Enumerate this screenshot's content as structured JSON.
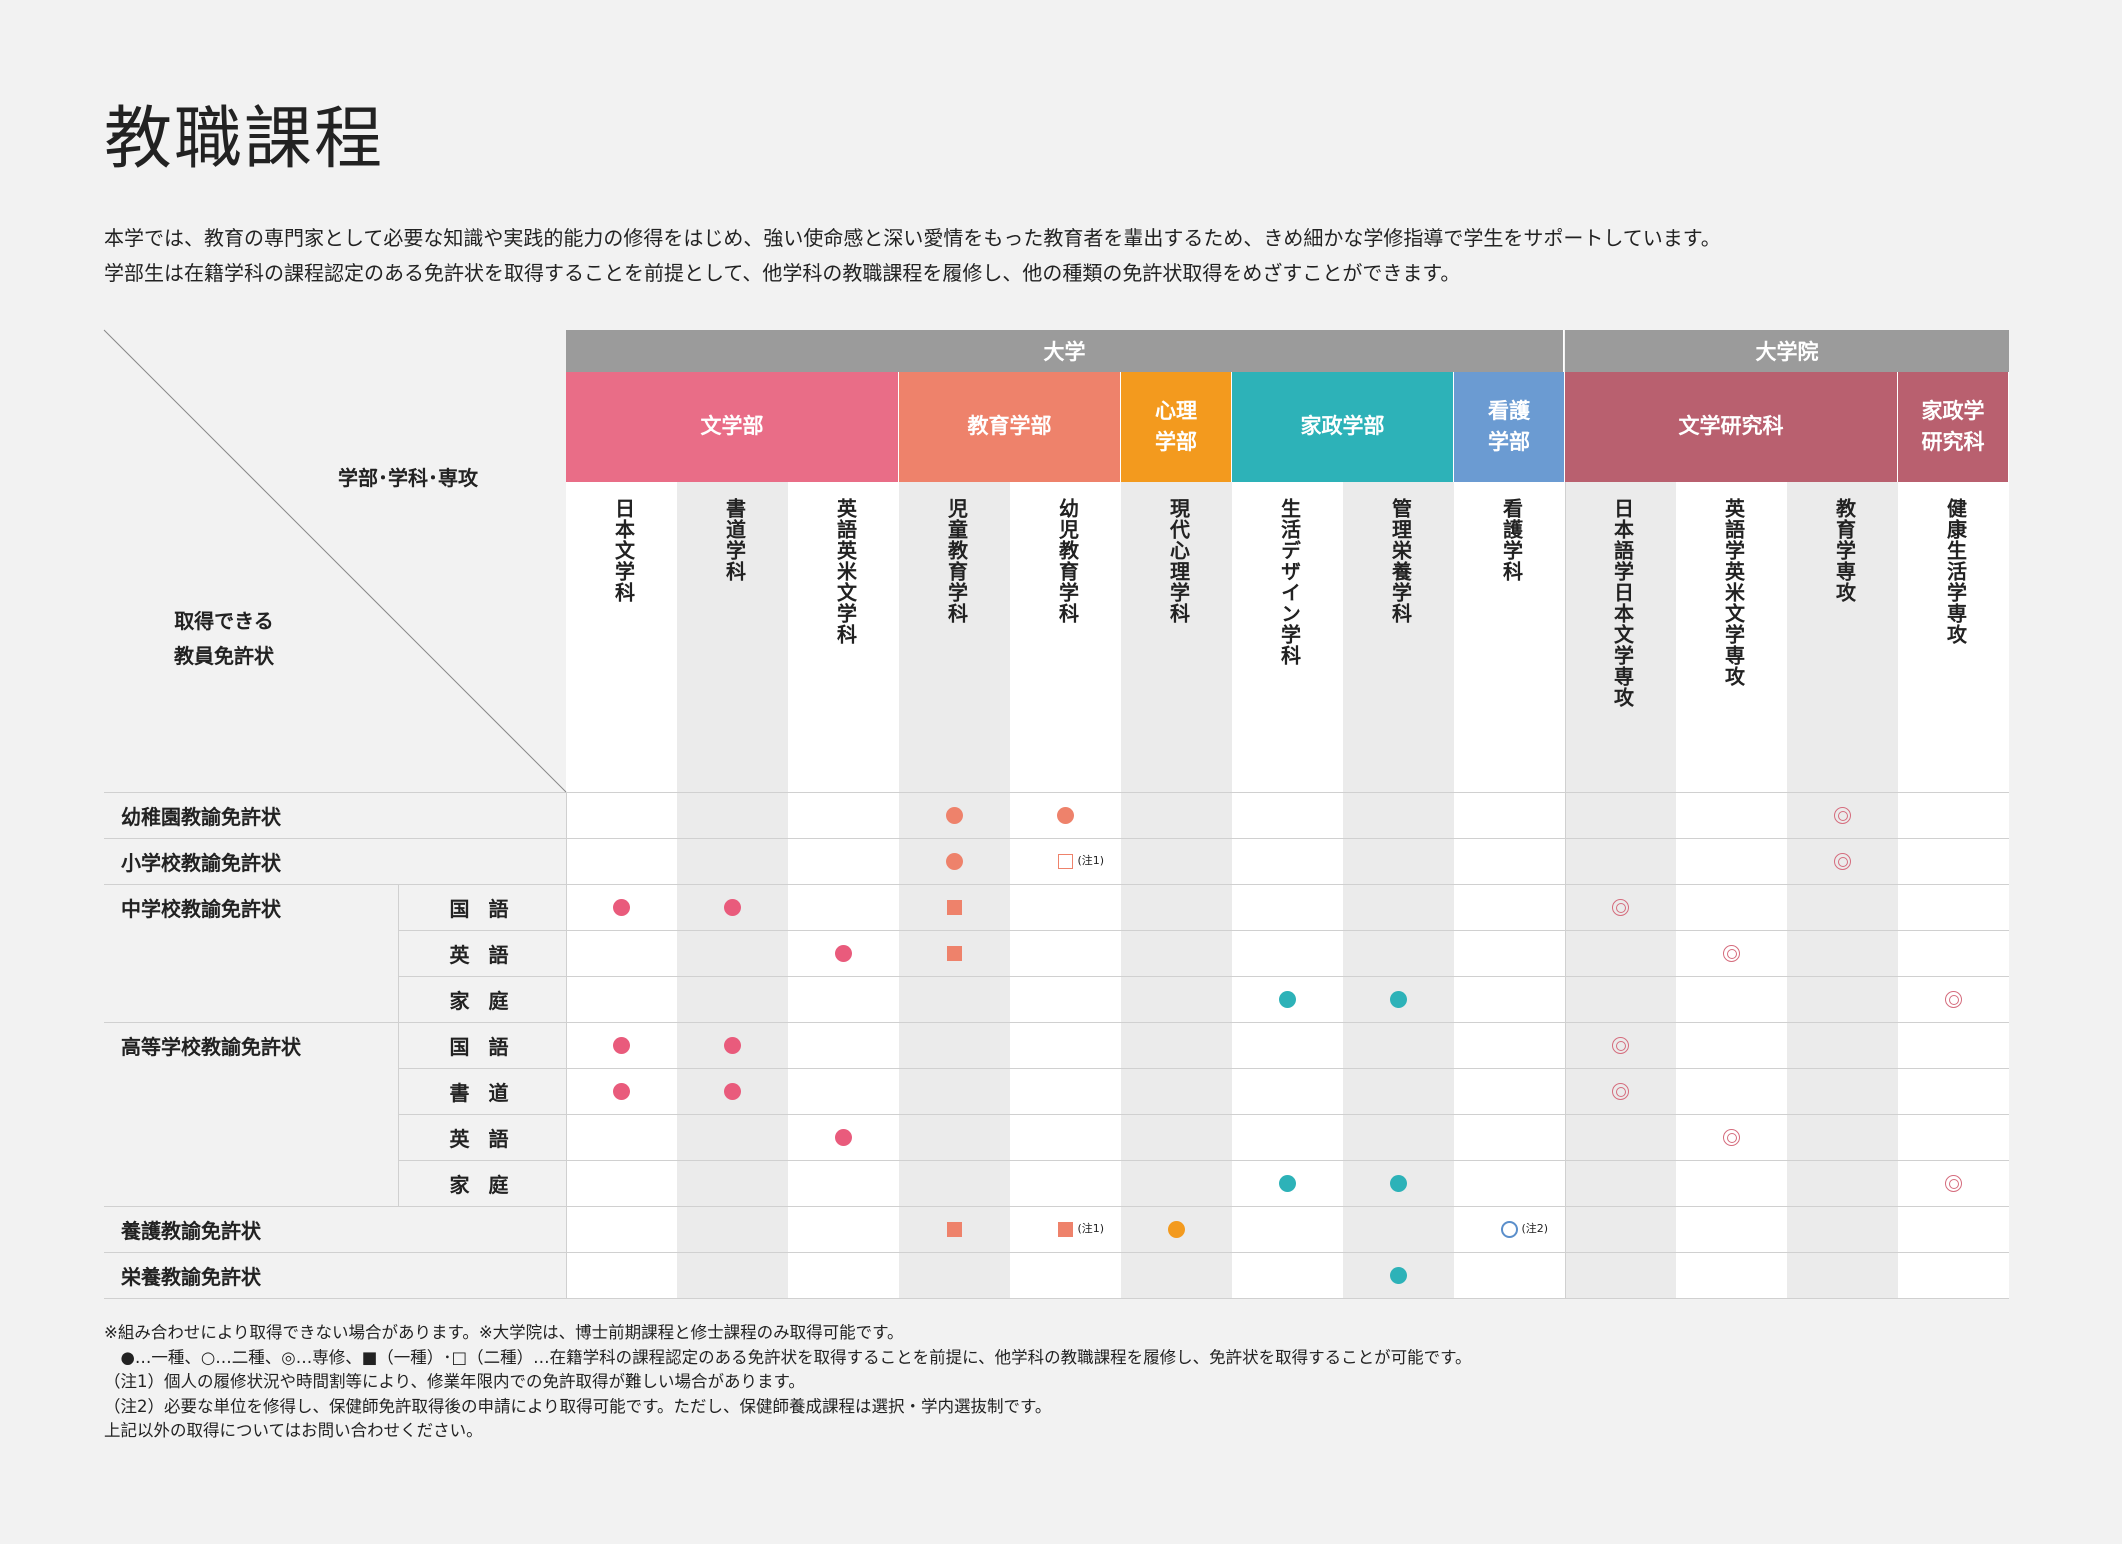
{
  "title": "教職課程",
  "intro": [
    "本学では、教育の専門家として必要な知識や実践的能力の修得をはじめ、強い使命感と深い愛情をもった教育者を輩出するため、きめ細かな学修指導で学生をサポートしています。",
    "学部生は在籍学科の課程認定のある免許状を取得することを前提として、他学科の教職課程を履修し、他の種類の免許状取得をめざすことができます。"
  ],
  "corner": {
    "top_label": "学部･学科･専攻",
    "bottom_label_1": "取得できる",
    "bottom_label_2": "教員免許状"
  },
  "groups": [
    {
      "label": "大学",
      "from": 0,
      "span": 9
    },
    {
      "label": "大学院",
      "from": 9,
      "span": 4
    }
  ],
  "faculties": [
    {
      "label": "文学部",
      "from": 0,
      "span": 3,
      "color": "#e96d87"
    },
    {
      "label": "教育学部",
      "from": 3,
      "span": 2,
      "color": "#ee826b"
    },
    {
      "label": "心理\n学部",
      "from": 5,
      "span": 1,
      "color": "#f39a1e"
    },
    {
      "label": "家政学部",
      "from": 6,
      "span": 2,
      "color": "#2db2b8"
    },
    {
      "label": "看護\n学部",
      "from": 8,
      "span": 1,
      "color": "#6b9bd2"
    },
    {
      "label": "文学研究科",
      "from": 9,
      "span": 3,
      "color": "#b9606f"
    },
    {
      "label": "家政学\n研究科",
      "from": 12,
      "span": 1,
      "color": "#b9606f"
    }
  ],
  "departments": [
    "日本文学科",
    "書道学科",
    "英語英米文学科",
    "児童教育学科",
    "幼児教育学科",
    "現代心理学科",
    "生活デザイン学科",
    "管理栄養学科",
    "看護学科",
    "日本語学日本文学専攻",
    "英語学英米文学専攻",
    "教育学専攻",
    "健康生活学専攻"
  ],
  "rows": [
    {
      "license": "幼稚園教諭免許状",
      "subject": "",
      "marks": [
        [
          3,
          "fc",
          "#ee826b"
        ],
        [
          4,
          "fc",
          "#ee826b"
        ],
        [
          11,
          "dc",
          "#d56c7d"
        ]
      ]
    },
    {
      "license": "小学校教諭免許状",
      "subject": "",
      "marks": [
        [
          3,
          "fc",
          "#ee826b"
        ],
        [
          4,
          "os",
          "#ee826b",
          "(注1)"
        ],
        [
          11,
          "dc",
          "#d56c7d"
        ]
      ]
    },
    {
      "license": "中学校教諭免許状",
      "subject": "国 語",
      "marks": [
        [
          0,
          "fc",
          "#e95b7c"
        ],
        [
          1,
          "fc",
          "#e95b7c"
        ],
        [
          3,
          "fs",
          "#ee826b"
        ],
        [
          9,
          "dc",
          "#d56c7d"
        ]
      ]
    },
    {
      "license": "",
      "subject": "英 語",
      "marks": [
        [
          2,
          "fc",
          "#e95b7c"
        ],
        [
          3,
          "fs",
          "#ee826b"
        ],
        [
          10,
          "dc",
          "#d56c7d"
        ]
      ]
    },
    {
      "license": "",
      "subject": "家 庭",
      "marks": [
        [
          6,
          "fc",
          "#2db2b8"
        ],
        [
          7,
          "fc",
          "#2db2b8"
        ],
        [
          12,
          "dc",
          "#d56c7d"
        ]
      ]
    },
    {
      "license": "高等学校教諭免許状",
      "subject": "国 語",
      "marks": [
        [
          0,
          "fc",
          "#e95b7c"
        ],
        [
          1,
          "fc",
          "#e95b7c"
        ],
        [
          9,
          "dc",
          "#d56c7d"
        ]
      ]
    },
    {
      "license": "",
      "subject": "書 道",
      "marks": [
        [
          0,
          "fc",
          "#e95b7c"
        ],
        [
          1,
          "fc",
          "#e95b7c"
        ],
        [
          9,
          "dc",
          "#d56c7d"
        ]
      ]
    },
    {
      "license": "",
      "subject": "英 語",
      "marks": [
        [
          2,
          "fc",
          "#e95b7c"
        ],
        [
          10,
          "dc",
          "#d56c7d"
        ]
      ]
    },
    {
      "license": "",
      "subject": "家 庭",
      "marks": [
        [
          6,
          "fc",
          "#2db2b8"
        ],
        [
          7,
          "fc",
          "#2db2b8"
        ],
        [
          12,
          "dc",
          "#d56c7d"
        ]
      ]
    },
    {
      "license": "養護教諭免許状",
      "subject": "",
      "marks": [
        [
          3,
          "fs",
          "#ee826b"
        ],
        [
          4,
          "fs",
          "#ee826b",
          "(注1)"
        ],
        [
          5,
          "fc",
          "#f39a1e"
        ],
        [
          8,
          "oc",
          "#5b8fcb",
          "(注2)"
        ]
      ]
    },
    {
      "license": "栄養教諭免許状",
      "subject": "",
      "marks": [
        [
          7,
          "fc",
          "#2db2b8"
        ]
      ]
    }
  ],
  "license_groups": [
    {
      "label": "中学校教諭免許状",
      "from": 2,
      "span": 3
    },
    {
      "label": "高等学校教諭免許状",
      "from": 5,
      "span": 4
    }
  ],
  "footnotes": [
    "※組み合わせにより取得できない場合があります。※大学院は、博士前期課程と修士課程のみ取得可能です。",
    "　●…一種、○…二種、◎…専修、■（一種）･□（二種）…在籍学科の課程認定のある免許状を取得することを前提に、他学科の教職課程を履修し、免許状を取得することが可能です。",
    "（注1）個人の履修状況や時間割等により、修業年限内での免許取得が難しい場合があります。",
    "（注2）必要な単位を修得し、保健師免許取得後の申請により取得可能です。ただし、保健師養成課程は選択・学内選抜制です。",
    "上記以外の取得についてはお問い合わせください。"
  ],
  "colors": {
    "group_header": "#9b9b9b",
    "grid_line": "#d0d0d0",
    "col_alt": "#ebebeb"
  }
}
